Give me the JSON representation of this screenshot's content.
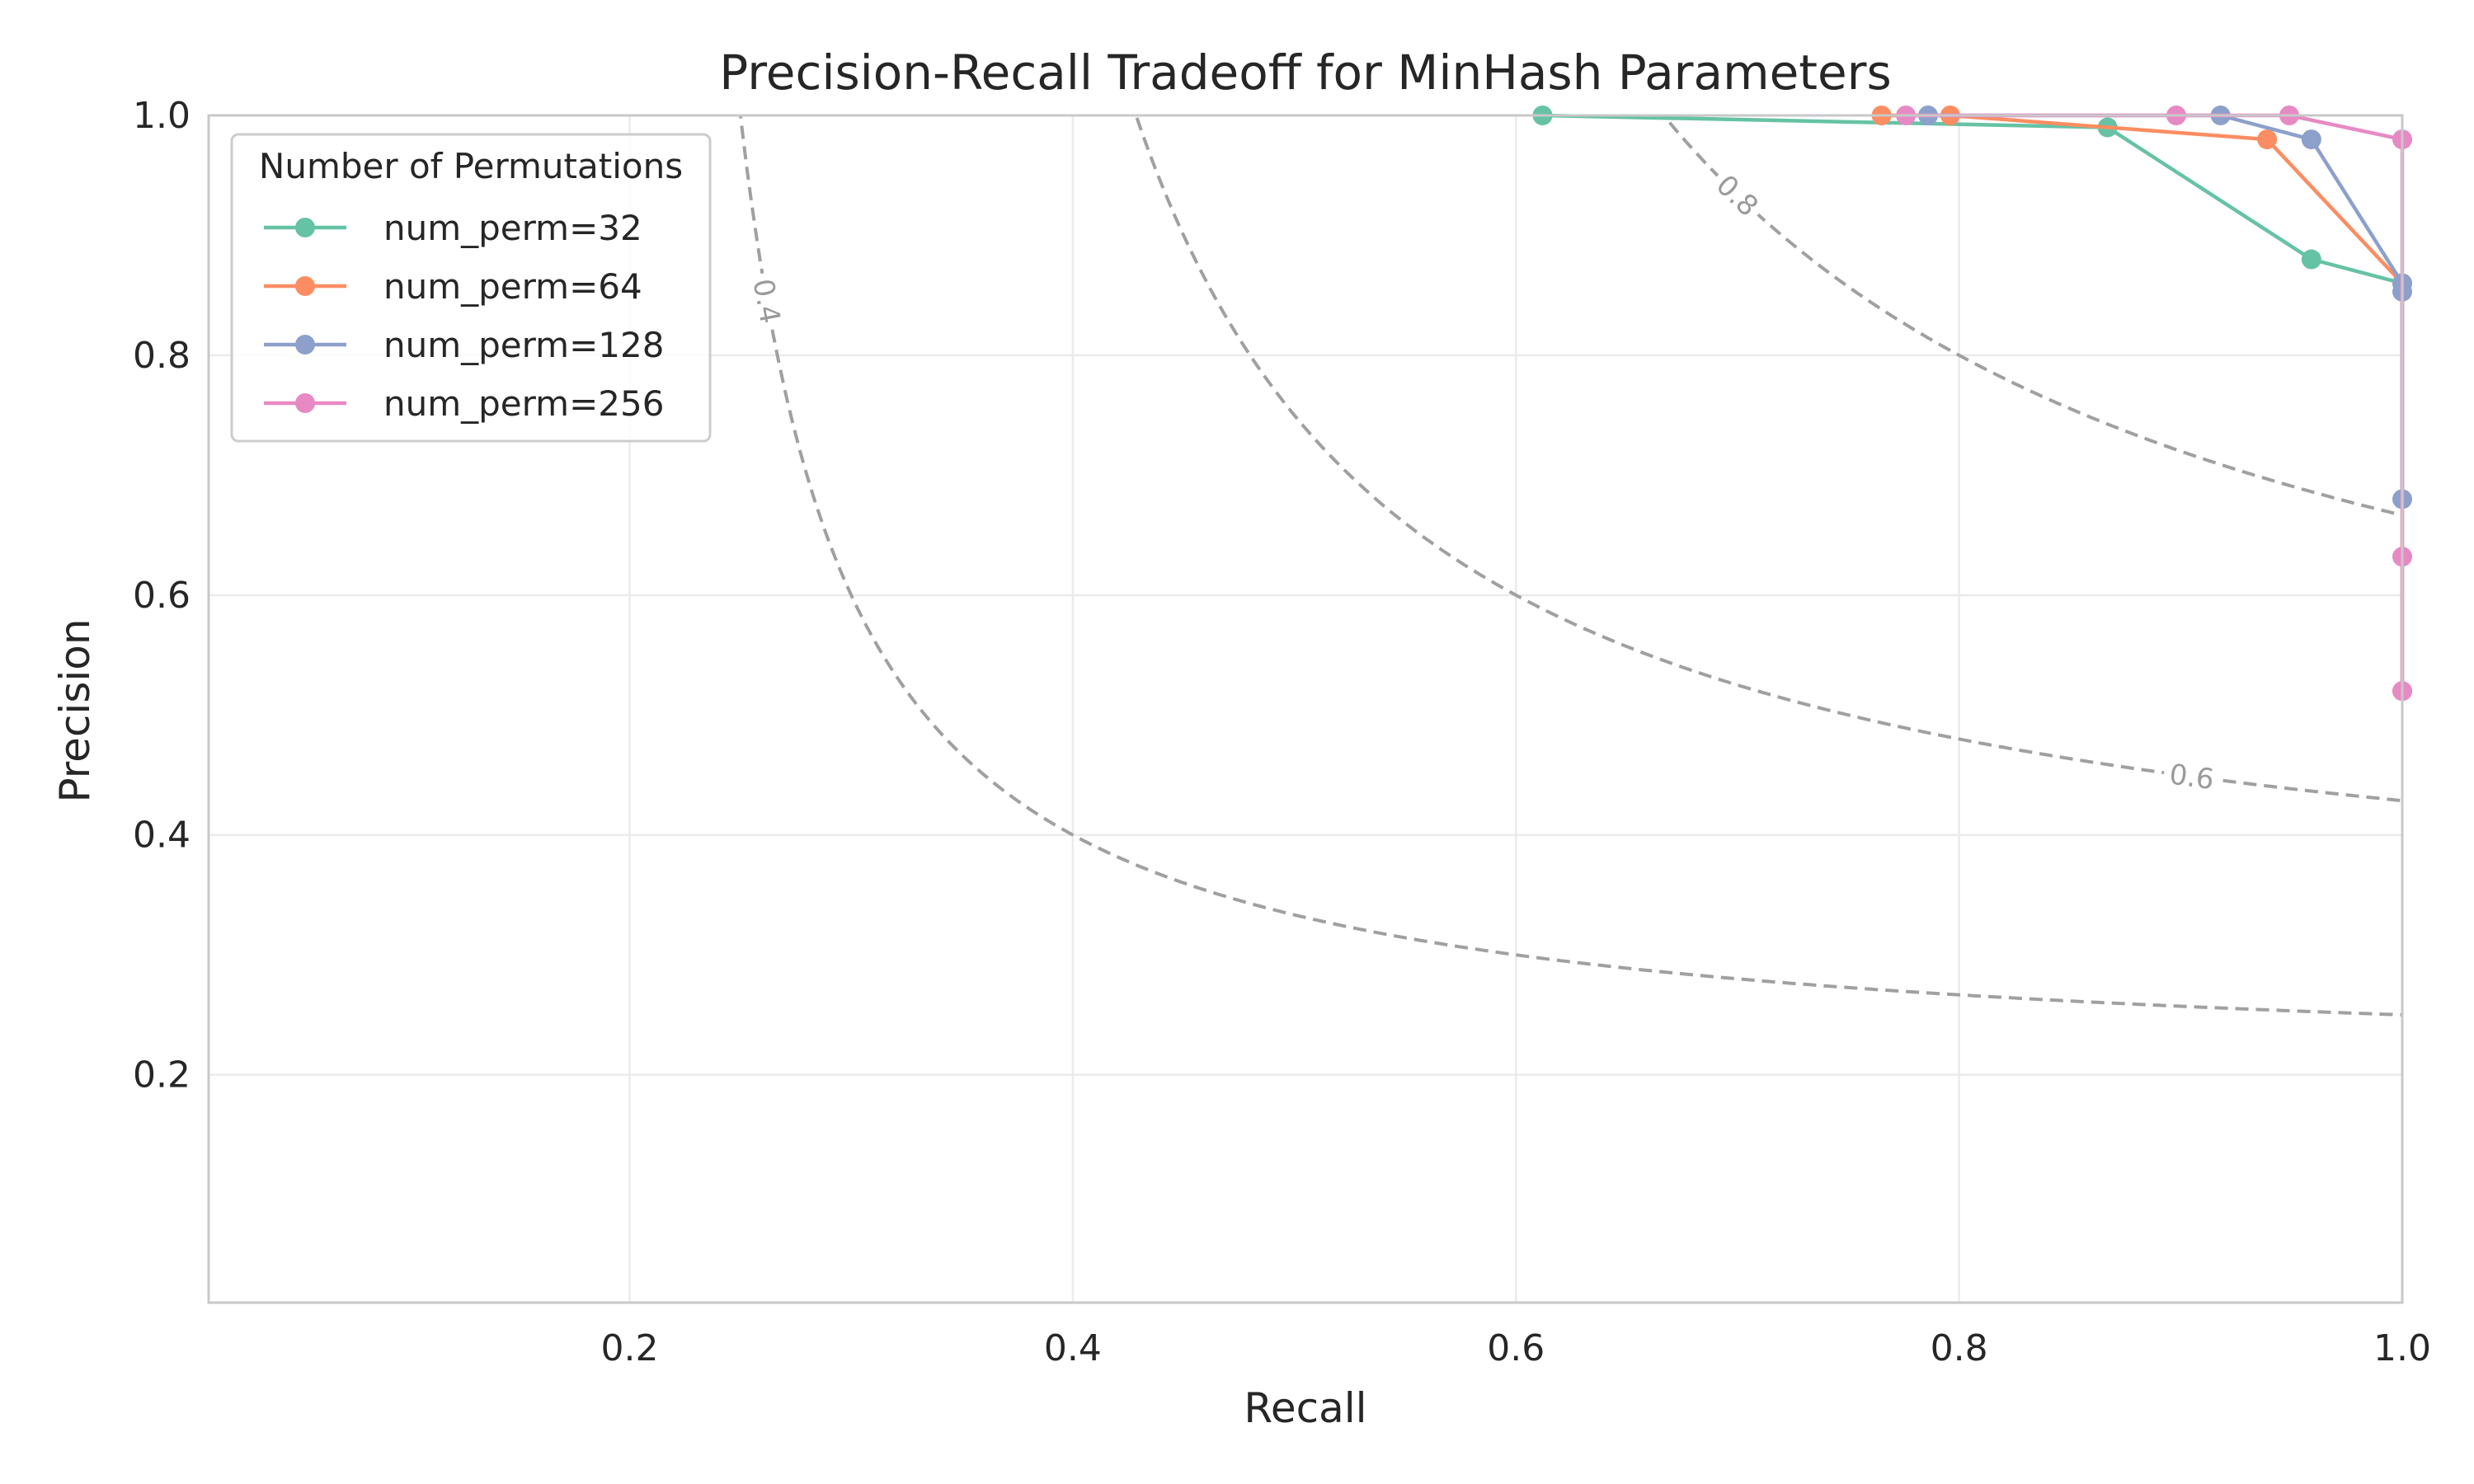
{
  "chart_data": {
    "type": "line",
    "title": "Precision-Recall Tradeoff for MinHash Parameters",
    "xlabel": "Recall",
    "ylabel": "Precision",
    "xlim": [
      0.01,
      1.0
    ],
    "ylim": [
      0.01,
      1.0
    ],
    "xticks": [
      0.2,
      0.4,
      0.6,
      0.8,
      1.0
    ],
    "yticks": [
      0.2,
      0.4,
      0.6,
      0.8,
      1.0
    ],
    "xtick_labels": [
      "0.2",
      "0.4",
      "0.6",
      "0.8",
      "1.0"
    ],
    "ytick_labels": [
      "0.2",
      "0.4",
      "0.6",
      "0.8",
      "1.0"
    ],
    "grid": true,
    "legend": {
      "title": "Number of Permutations",
      "placement": "top-left"
    },
    "series": [
      {
        "name": "num_perm=32",
        "color": "#66c2a5",
        "x": [
          0.612,
          0.867,
          0.959,
          1.0
        ],
        "y": [
          1.0,
          0.99,
          0.88,
          0.86
        ]
      },
      {
        "name": "num_perm=64",
        "color": "#fc8d62",
        "x": [
          0.765,
          0.796,
          0.939,
          1.0,
          1.0
        ],
        "y": [
          1.0,
          1.0,
          0.98,
          0.86,
          0.52
        ]
      },
      {
        "name": "num_perm=128",
        "color": "#8da0cb",
        "x": [
          0.786,
          0.918,
          0.959,
          1.0,
          1.0,
          1.0
        ],
        "y": [
          1.0,
          1.0,
          0.98,
          0.86,
          0.853,
          0.68
        ]
      },
      {
        "name": "num_perm=256",
        "color": "#e78ac3",
        "x": [
          0.776,
          0.898,
          0.949,
          1.0,
          1.0,
          1.0
        ],
        "y": [
          1.0,
          1.0,
          1.0,
          0.98,
          0.632,
          0.52
        ]
      }
    ],
    "iso_f1_curves": {
      "style": "dashed",
      "color": "#a0a0a0",
      "levels": [
        0.4,
        0.6,
        0.8
      ],
      "labels": [
        "0.4",
        "0.6",
        "0.8"
      ]
    }
  }
}
